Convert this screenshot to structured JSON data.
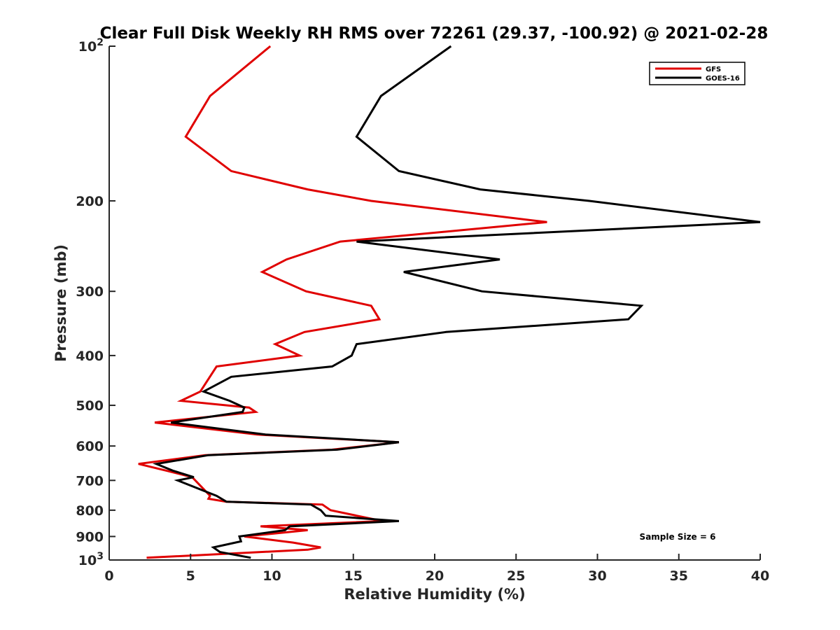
{
  "chart_data": {
    "type": "line",
    "title": "Clear Full Disk Weekly RH RMS over 72261 (29.37, -100.92) @ 2021-02-28",
    "xlabel": "Relative Humidity (%)",
    "ylabel": "Pressure (mb)",
    "xlim": [
      0,
      40
    ],
    "ylim": [
      100,
      1000
    ],
    "yscale": "log",
    "y_reversed": true,
    "x_ticks": [
      0,
      5,
      10,
      15,
      20,
      25,
      30,
      35,
      40
    ],
    "x_tick_labels": [
      "0",
      "5",
      "10",
      "15",
      "20",
      "25",
      "30",
      "35",
      "40"
    ],
    "y_ticks": [
      200,
      300,
      400,
      500,
      600,
      700,
      800,
      900
    ],
    "y_tick_labels": [
      "200",
      "300",
      "400",
      "500",
      "600",
      "700",
      "800",
      "900"
    ],
    "y_decade_labels": [
      {
        "value": 100,
        "base": "10",
        "exp": "2"
      },
      {
        "value": 1000,
        "base": "10",
        "exp": "3"
      }
    ],
    "legend_position": "top-right",
    "annotation": "Sample Size = 6",
    "series": [
      {
        "name": "GFS",
        "color": "#e00000",
        "points": [
          [
            9.9,
            100
          ],
          [
            6.2,
            125
          ],
          [
            4.7,
            150
          ],
          [
            7.5,
            175
          ],
          [
            12.2,
            190
          ],
          [
            16.1,
            200
          ],
          [
            26.9,
            220
          ],
          [
            14.2,
            240
          ],
          [
            10.9,
            260
          ],
          [
            9.4,
            275
          ],
          [
            12.1,
            300
          ],
          [
            16.1,
            320
          ],
          [
            16.6,
            340
          ],
          [
            12.0,
            360
          ],
          [
            10.2,
            380
          ],
          [
            11.7,
            400
          ],
          [
            6.6,
            420
          ],
          [
            5.6,
            470
          ],
          [
            4.4,
            490
          ],
          [
            8.6,
            505
          ],
          [
            9.0,
            515
          ],
          [
            2.8,
            540
          ],
          [
            9.1,
            570
          ],
          [
            17.8,
            590
          ],
          [
            13.7,
            610
          ],
          [
            5.9,
            625
          ],
          [
            1.8,
            650
          ],
          [
            3.5,
            670
          ],
          [
            5.1,
            690
          ],
          [
            6.2,
            750
          ],
          [
            6.1,
            760
          ],
          [
            7.2,
            770
          ],
          [
            13.1,
            780
          ],
          [
            13.6,
            800
          ],
          [
            16.8,
            840
          ],
          [
            9.3,
            860
          ],
          [
            12.2,
            875
          ],
          [
            8.3,
            900
          ],
          [
            11.3,
            925
          ],
          [
            13.0,
            945
          ],
          [
            12.2,
            955
          ],
          [
            2.3,
            990
          ]
        ]
      },
      {
        "name": "GOES-16",
        "color": "#000000",
        "points": [
          [
            21.0,
            100
          ],
          [
            16.7,
            125
          ],
          [
            15.2,
            150
          ],
          [
            17.8,
            175
          ],
          [
            22.8,
            190
          ],
          [
            29.5,
            200
          ],
          [
            40.0,
            220
          ],
          [
            15.2,
            240
          ],
          [
            24.0,
            260
          ],
          [
            18.1,
            275
          ],
          [
            22.9,
            300
          ],
          [
            32.7,
            320
          ],
          [
            31.9,
            340
          ],
          [
            20.7,
            360
          ],
          [
            15.2,
            380
          ],
          [
            14.9,
            400
          ],
          [
            13.7,
            420
          ],
          [
            7.5,
            440
          ],
          [
            5.8,
            470
          ],
          [
            7.4,
            490
          ],
          [
            8.3,
            505
          ],
          [
            8.2,
            515
          ],
          [
            3.8,
            540
          ],
          [
            9.6,
            570
          ],
          [
            17.8,
            590
          ],
          [
            14.0,
            610
          ],
          [
            6.1,
            625
          ],
          [
            2.9,
            650
          ],
          [
            3.9,
            670
          ],
          [
            5.2,
            690
          ],
          [
            4.2,
            700
          ],
          [
            6.6,
            750
          ],
          [
            7.2,
            770
          ],
          [
            12.4,
            780
          ],
          [
            13.0,
            800
          ],
          [
            13.3,
            820
          ],
          [
            17.8,
            840
          ],
          [
            11.1,
            860
          ],
          [
            10.8,
            875
          ],
          [
            8.0,
            900
          ],
          [
            8.1,
            920
          ],
          [
            6.4,
            945
          ],
          [
            6.8,
            965
          ],
          [
            8.7,
            990
          ]
        ]
      }
    ]
  }
}
